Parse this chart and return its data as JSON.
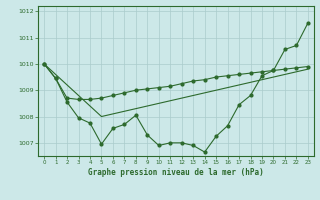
{
  "background_color": "#cce8e8",
  "grid_color": "#aacccc",
  "line_color": "#2d6a2d",
  "title": "Graphe pression niveau de la mer (hPa)",
  "xlim": [
    -0.5,
    23.5
  ],
  "ylim": [
    1006.5,
    1012.2
  ],
  "yticks": [
    1007,
    1008,
    1009,
    1010,
    1011,
    1012
  ],
  "xticks": [
    0,
    1,
    2,
    3,
    4,
    5,
    6,
    7,
    8,
    9,
    10,
    11,
    12,
    13,
    14,
    15,
    16,
    17,
    18,
    19,
    20,
    21,
    22,
    23
  ],
  "series1": [
    1010.0,
    1009.45,
    1008.55,
    1007.95,
    1007.75,
    1006.95,
    1007.55,
    1007.7,
    1008.05,
    1007.3,
    1006.9,
    1007.0,
    1007.0,
    1006.9,
    1006.65,
    1007.25,
    1007.65,
    1008.45,
    1008.8,
    1009.55,
    1009.75,
    1010.55,
    1010.7,
    1011.55
  ],
  "series2": [
    1010.0,
    1009.45,
    1008.7,
    1008.65,
    1008.65,
    1008.7,
    1008.8,
    1008.9,
    1009.0,
    1009.05,
    1009.1,
    1009.15,
    1009.25,
    1009.35,
    1009.4,
    1009.5,
    1009.55,
    1009.6,
    1009.65,
    1009.7,
    1009.75,
    1009.8,
    1009.85,
    1009.9
  ],
  "series3": [
    1010.0,
    1009.6,
    1009.2,
    1008.8,
    1008.4,
    1008.0,
    1008.1,
    1008.2,
    1008.3,
    1008.4,
    1008.5,
    1008.6,
    1008.7,
    1008.8,
    1008.9,
    1009.0,
    1009.1,
    1009.2,
    1009.3,
    1009.4,
    1009.5,
    1009.6,
    1009.7,
    1009.8
  ]
}
